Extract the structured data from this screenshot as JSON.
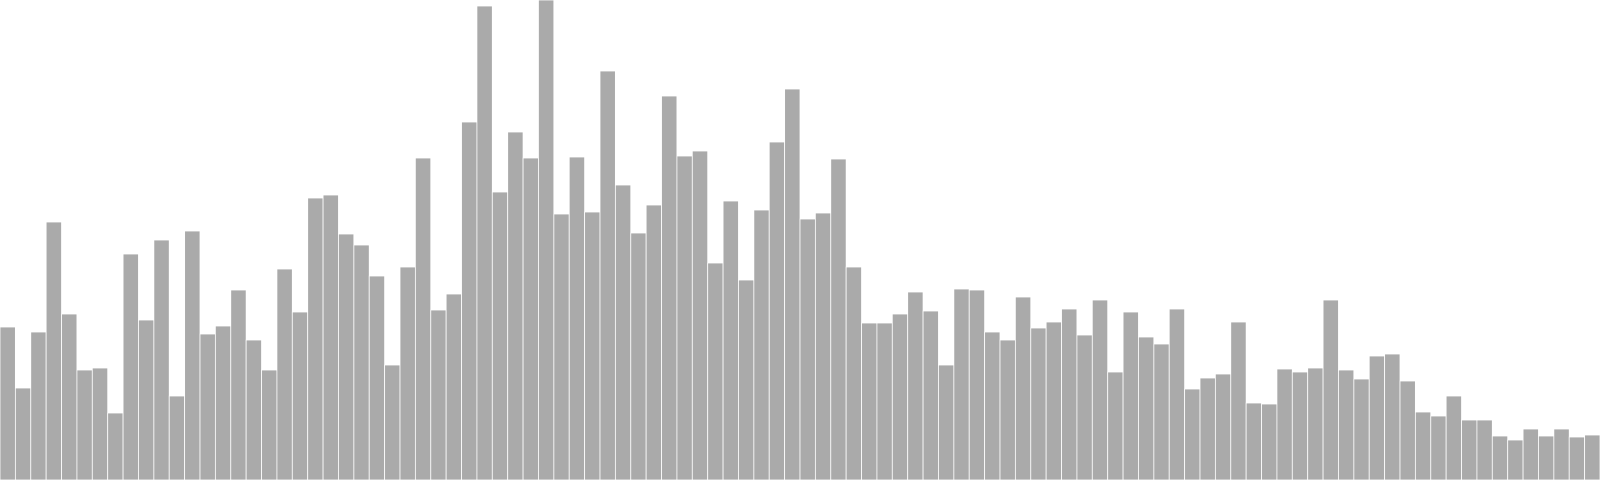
{
  "chart_data": {
    "type": "bar",
    "title": "",
    "xlabel": "",
    "ylabel": "",
    "axes_visible": false,
    "grid": false,
    "legend": "none",
    "bar_color": "#aaaaaa",
    "bar_edge_color": "#ffffff",
    "ylim": [
      0,
      480
    ],
    "values": [
      153,
      92,
      148,
      258,
      166,
      110,
      112,
      67,
      226,
      160,
      240,
      84,
      249,
      146,
      154,
      190,
      140,
      110,
      211,
      168,
      282,
      285,
      246,
      235,
      204,
      115,
      213,
      322,
      170,
      186,
      358,
      474,
      288,
      348,
      322,
      480,
      266,
      323,
      268,
      409,
      295,
      247,
      275,
      384,
      324,
      329,
      217,
      279,
      200,
      270,
      338,
      391,
      261,
      267,
      321,
      213,
      157,
      157,
      166,
      188,
      169,
      115,
      191,
      190,
      148,
      140,
      183,
      152,
      158,
      171,
      145,
      180,
      108,
      168,
      143,
      136,
      171,
      91,
      102,
      106,
      158,
      77,
      76,
      111,
      108,
      112,
      180,
      110,
      101,
      124,
      126,
      99,
      68,
      64,
      84,
      60,
      60,
      44,
      40,
      51,
      44,
      51,
      43,
      45
    ]
  }
}
